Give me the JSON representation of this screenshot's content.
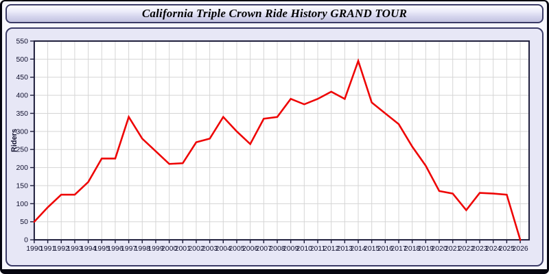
{
  "window": {
    "title": "California Triple Crown Ride History GRAND TOUR"
  },
  "colors": {
    "accent_line": "#ee0404",
    "panel_bg": "#e7e7f6",
    "plot_bg": "#ffffff",
    "grid": "#d5d5d5",
    "plot_border": "#1c1c3a",
    "tick_text": "#10102e",
    "panel_border": "#3a3a66",
    "outer_border": "#05050f",
    "page_bg": "#f7f7fe"
  },
  "chart_data": {
    "type": "line",
    "title": "California Triple Crown Ride History GRAND TOUR",
    "xlabel": "",
    "ylabel": "Riders",
    "x": [
      1990,
      1991,
      1992,
      1993,
      1994,
      1995,
      1996,
      1997,
      1998,
      1999,
      2000,
      2001,
      2002,
      2003,
      2004,
      2005,
      2006,
      2007,
      2008,
      2009,
      2010,
      2011,
      2012,
      2013,
      2014,
      2015,
      2016,
      2017,
      2018,
      2019,
      2020,
      2021,
      2022,
      2023,
      2024,
      2025,
      2026
    ],
    "series": [
      {
        "name": "Riders",
        "color": "#ee0404",
        "values": [
          50,
          90,
          125,
          125,
          160,
          225,
          225,
          340,
          280,
          245,
          210,
          212,
          270,
          280,
          340,
          300,
          265,
          335,
          340,
          390,
          375,
          390,
          410,
          390,
          495,
          380,
          350,
          320,
          258,
          205,
          135,
          128,
          82,
          130,
          128,
          125,
          0
        ]
      }
    ],
    "ylim": [
      0,
      550
    ],
    "ytick_step": 50,
    "xlim": [
      1990,
      2026
    ],
    "grid": true,
    "legend": "none",
    "annotations": []
  }
}
